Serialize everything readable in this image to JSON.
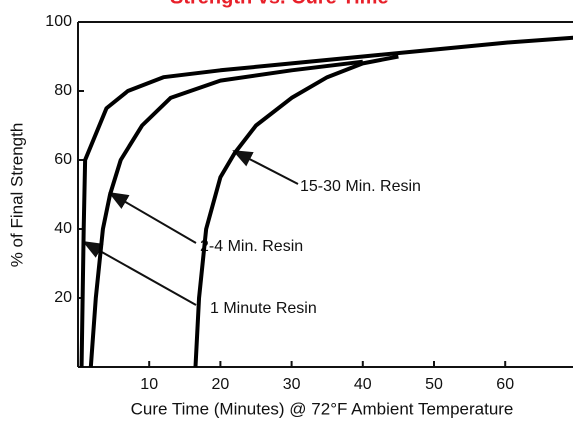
{
  "chart_data": {
    "type": "line",
    "title": "Strength vs. Cure Time",
    "x_label": "Cure Time (Minutes) @ 72°F Ambient Temperature",
    "y_label": "% of Final Strength",
    "xlim": [
      0,
      70
    ],
    "ylim": [
      0,
      100
    ],
    "xticks": [
      10,
      20,
      30,
      40,
      50,
      60
    ],
    "yticks": [
      20,
      40,
      60,
      80,
      100
    ],
    "grid": false,
    "series": [
      {
        "name": "1 Minute Resin",
        "color": "#000000",
        "x": [
          0.5,
          0.8,
          1,
          2,
          4,
          7,
          12,
          20,
          30,
          40,
          50,
          60,
          70
        ],
        "values": [
          0,
          40,
          60,
          65,
          75,
          80,
          84,
          86,
          88,
          90,
          92,
          94,
          95.5
        ]
      },
      {
        "name": "2-4 Min. Resin",
        "color": "#000000",
        "x": [
          1.8,
          2.5,
          3.5,
          4.5,
          6,
          9,
          13,
          20,
          30,
          40
        ],
        "values": [
          0,
          20,
          40,
          50,
          60,
          70,
          78,
          83,
          86,
          88.5
        ]
      },
      {
        "name": "15-30 Min. Resin",
        "color": "#000000",
        "x": [
          16.5,
          17,
          18,
          20,
          22,
          25,
          30,
          35,
          40,
          45
        ],
        "values": [
          0,
          20,
          40,
          55,
          62,
          70,
          78,
          84,
          88,
          90
        ]
      }
    ]
  }
}
